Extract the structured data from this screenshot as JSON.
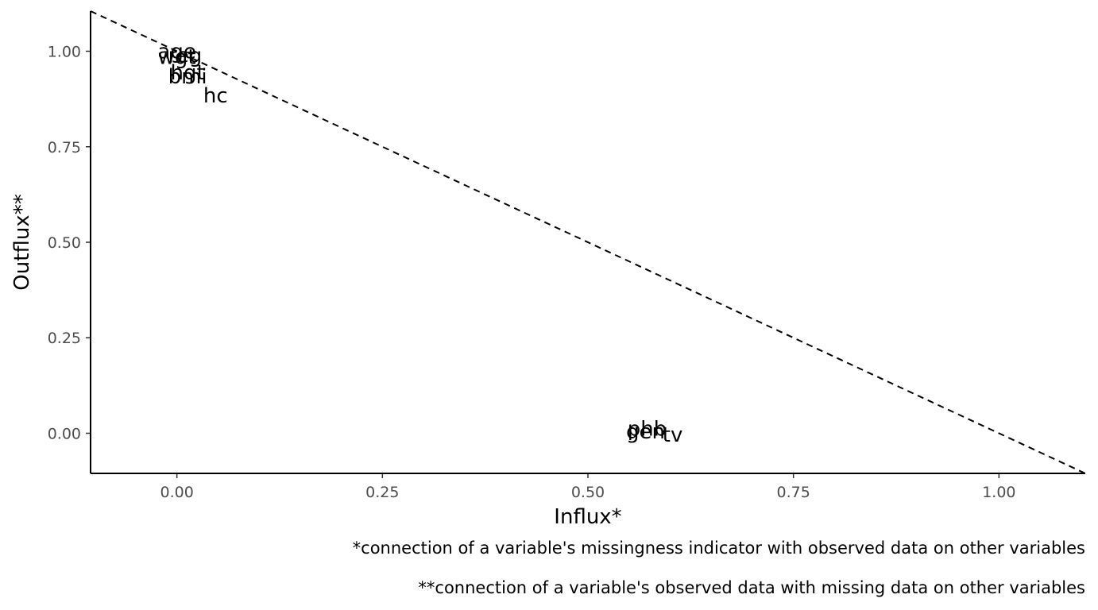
{
  "chart_data": {
    "type": "scatter",
    "title": "",
    "xlabel": "Influx*",
    "ylabel": "Outflux**",
    "xlim": [
      -0.105,
      1.105
    ],
    "ylim": [
      -0.105,
      1.105
    ],
    "x_ticks": [
      0.0,
      0.25,
      0.5,
      0.75,
      1.0
    ],
    "x_tick_labels": [
      "0.00",
      "0.25",
      "0.50",
      "0.75",
      "1.00"
    ],
    "y_ticks": [
      0.0,
      0.25,
      0.5,
      0.75,
      1.0
    ],
    "y_tick_labels": [
      "0.00",
      "0.25",
      "0.50",
      "0.75",
      "1.00"
    ],
    "grid": false,
    "reference_line": {
      "style": "dashed",
      "from": [
        -0.105,
        1.105
      ],
      "to": [
        1.105,
        -0.105
      ]
    },
    "points": [
      {
        "label": "age",
        "x": 0.0,
        "y": 1.0
      },
      {
        "label": "wgt",
        "x": 0.0,
        "y": 0.985
      },
      {
        "label": "reg",
        "x": 0.01,
        "y": 0.99
      },
      {
        "label": "hgt",
        "x": 0.013,
        "y": 0.945
      },
      {
        "label": "bmi",
        "x": 0.013,
        "y": 0.935
      },
      {
        "label": "hc",
        "x": 0.047,
        "y": 0.885
      },
      {
        "label": "gen",
        "x": 0.57,
        "y": 0.005
      },
      {
        "label": "phb",
        "x": 0.572,
        "y": 0.012
      },
      {
        "label": "tv",
        "x": 0.603,
        "y": -0.003
      }
    ]
  },
  "captions": {
    "influx_note": "*connection of a variable's missingness indicator with observed data on other variables",
    "outflux_note": "**connection of a variable's observed data with missing data on other variables"
  }
}
